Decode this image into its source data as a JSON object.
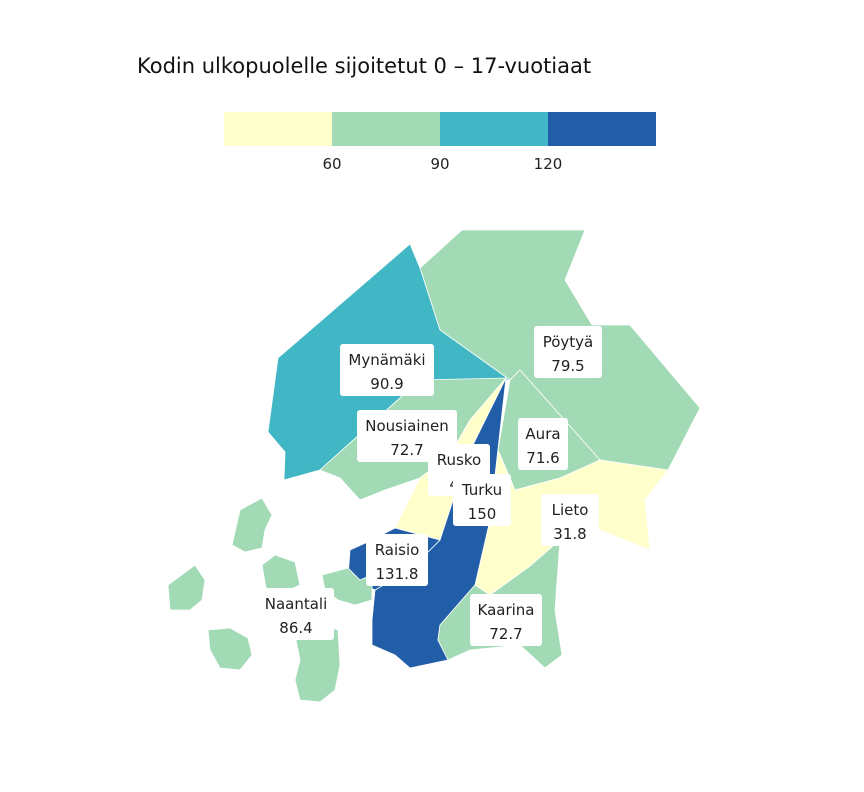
{
  "title": "Kodin ulkopuolelle sijoitetut 0 – 17-vuotiaat",
  "legend": {
    "colors": [
      "#ffffcc",
      "#a1dab4",
      "#41b6c4",
      "#225ea8"
    ],
    "breaks": [
      60,
      90,
      120
    ],
    "tick_labels": [
      "60",
      "90",
      "120"
    ]
  },
  "municipalities": [
    {
      "name": "Mynämäki",
      "value_label": "90.9",
      "value": 90.9,
      "color": "#41b6c4"
    },
    {
      "name": "Pöytyä",
      "value_label": "79.5",
      "value": 79.5,
      "color": "#a1dab4"
    },
    {
      "name": "Nousiainen",
      "value_label": "72.7",
      "value": 72.7,
      "color": "#a1dab4"
    },
    {
      "name": "Aura",
      "value_label": "71.6",
      "value": 71.6,
      "color": "#a1dab4"
    },
    {
      "name": "Rusko",
      "value_label": "41",
      "value": 41,
      "color": "#ffffcc"
    },
    {
      "name": "Turku",
      "value_label": "150",
      "value": 150,
      "color": "#225ea8"
    },
    {
      "name": "Lieto",
      "value_label": "31.8",
      "value": 31.8,
      "color": "#ffffcc"
    },
    {
      "name": "Raisio",
      "value_label": "131.8",
      "value": 131.8,
      "color": "#225ea8"
    },
    {
      "name": "Naantali",
      "value_label": "86.4",
      "value": 86.4,
      "color": "#a1dab4"
    },
    {
      "name": "Kaarina",
      "value_label": "72.7",
      "value": 72.7,
      "color": "#a1dab4"
    }
  ]
}
